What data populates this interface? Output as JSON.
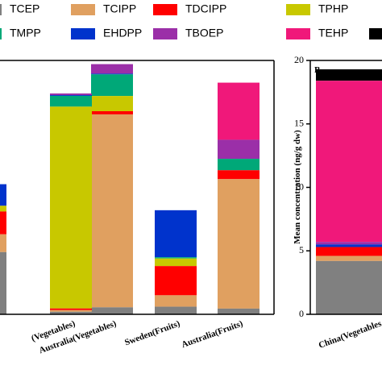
{
  "chart_data": [
    {
      "type": "stacked_bar",
      "categories": [
        null,
        "(Vegetables)",
        "Australia(Vegetables)",
        "Sweden(Fruits)",
        "Australia(Fruits)"
      ],
      "ylim": [
        0,
        20
      ],
      "series": [
        {
          "name": "TCEP",
          "color": "#808080",
          "values": [
            4.9,
            0.2,
            0.55,
            0.6,
            0.45
          ]
        },
        {
          "name": "TCIPP",
          "color": "#E0A060",
          "values": [
            1.4,
            0.13,
            15.2,
            0.9,
            10.2
          ]
        },
        {
          "name": "TDCIPP",
          "color": "#FF0000",
          "values": [
            1.8,
            0.13,
            0.25,
            2.3,
            0.7
          ]
        },
        {
          "name": "TPHP",
          "color": "#C8C800",
          "values": [
            0.45,
            15.9,
            1.2,
            0.6,
            0
          ]
        },
        {
          "name": "TMPP",
          "color": "#00A878",
          "values": [
            0,
            0.85,
            1.7,
            0.1,
            0.9
          ]
        },
        {
          "name": "EHDPP",
          "color": "#0033CC",
          "values": [
            1.7,
            0.06,
            0.06,
            3.7,
            0
          ]
        },
        {
          "name": "TBOEP",
          "color": "#9B2FA8",
          "values": [
            0,
            0.13,
            0.75,
            0,
            1.5
          ]
        },
        {
          "name": "TEHP",
          "color": "#F0187A",
          "values": [
            0,
            0,
            0,
            0,
            4.5
          ]
        }
      ]
    },
    {
      "type": "stacked_bar",
      "label": "B",
      "ylabel": "Mean concentration (ng/g dw)",
      "categories": [
        "China(Vegetables"
      ],
      "ylim": [
        0,
        20
      ],
      "yticks": [
        0,
        5,
        10,
        15,
        20
      ],
      "series": [
        {
          "color": "#808080",
          "values": [
            4.2
          ]
        },
        {
          "color": "#E0A060",
          "values": [
            0.4
          ]
        },
        {
          "color": "#FF0000",
          "values": [
            0.7
          ]
        },
        {
          "color": "#C8C800",
          "values": [
            0
          ]
        },
        {
          "color": "#00A878",
          "values": [
            0
          ]
        },
        {
          "color": "#0033CC",
          "values": [
            0.2
          ]
        },
        {
          "color": "#9B2FA8",
          "values": [
            0.2
          ]
        },
        {
          "color": "#F0187A",
          "values": [
            12.7
          ]
        },
        {
          "color": "#000000",
          "values": [
            0.9
          ]
        }
      ]
    }
  ]
}
